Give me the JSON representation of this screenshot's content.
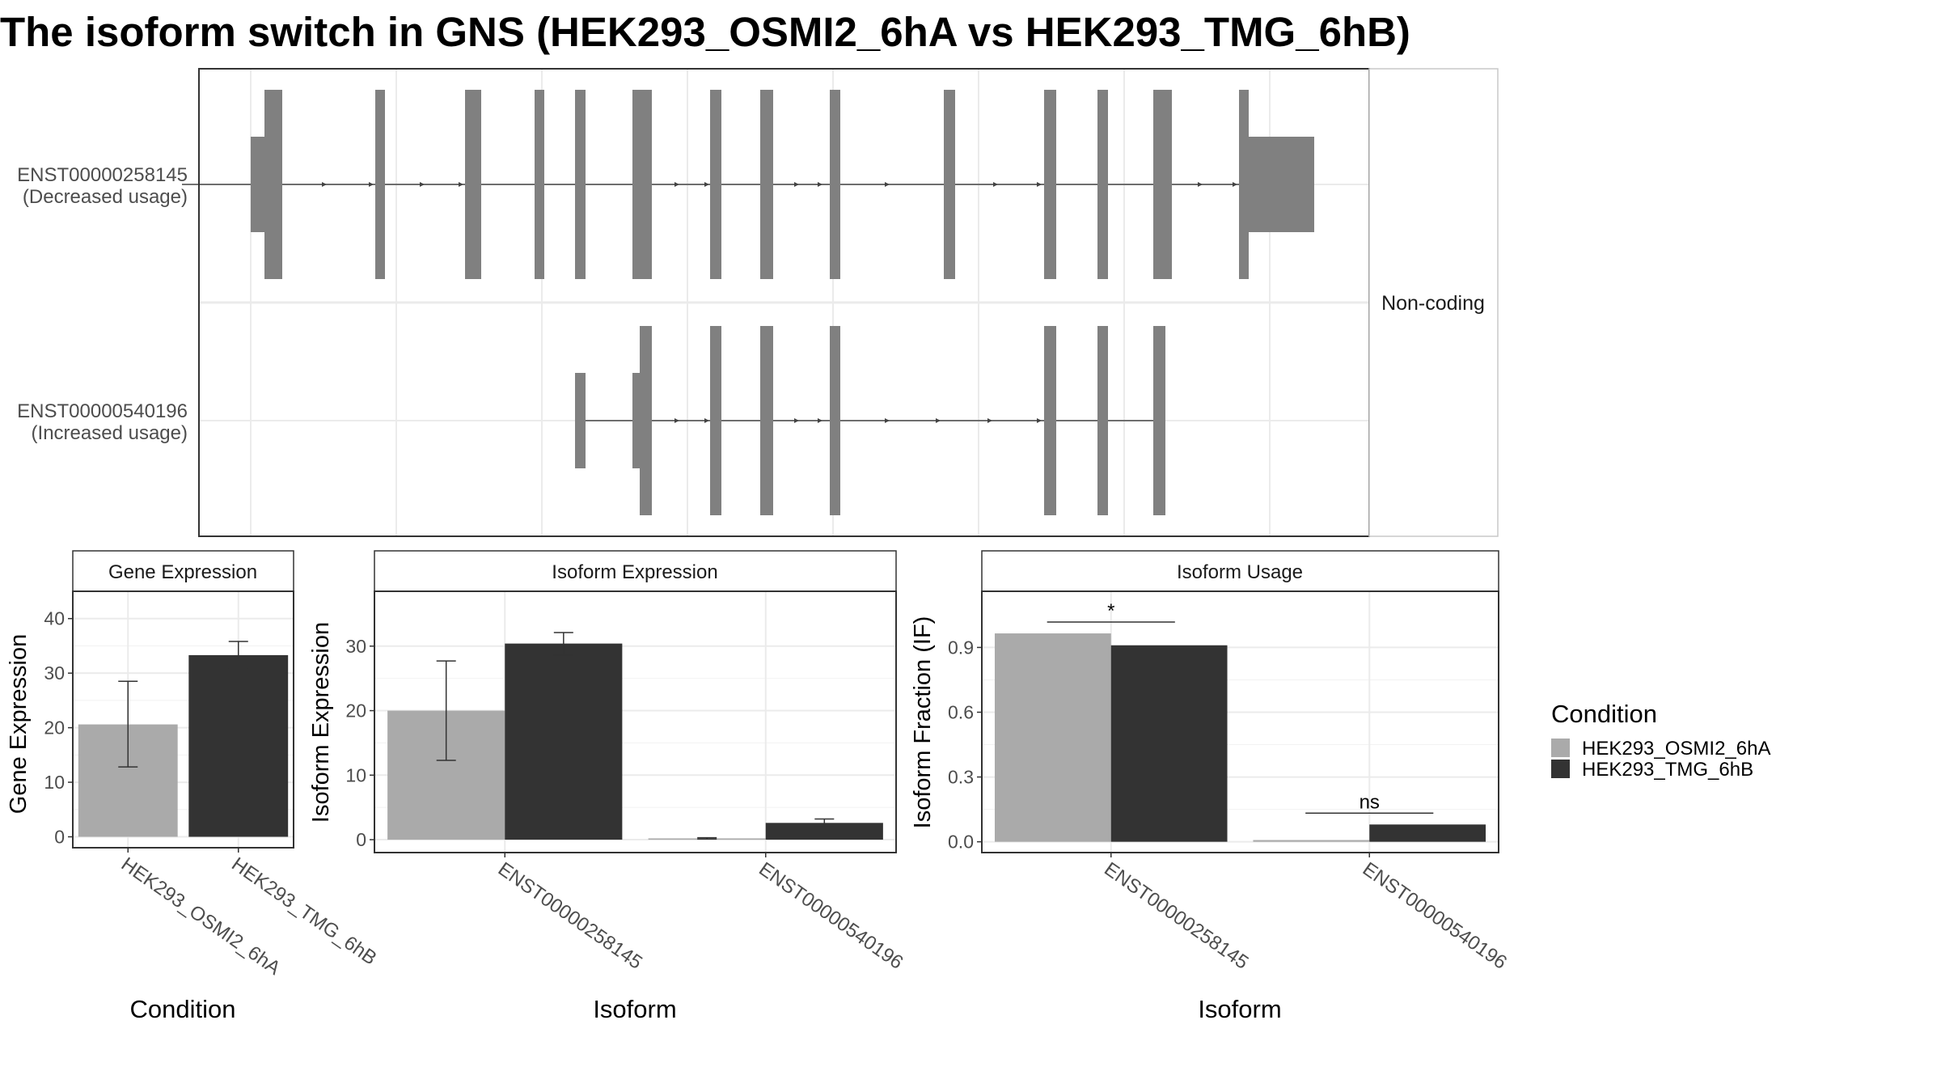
{
  "title": "The isoform switch in GNS (HEK293_OSMI2_6hA vs HEK293_TMG_6hB)",
  "colors": {
    "condA": "#aaaaaa",
    "condB": "#333333",
    "exon": "#808080",
    "grid": "#ebebeb",
    "panel_border": "#333333"
  },
  "structure": {
    "facet_label": "Non-coding",
    "transcripts": [
      {
        "id": "ENST00000258145",
        "usage": "(Decreased usage)"
      },
      {
        "id": "ENST00000540196",
        "usage": "(Increased usage)"
      }
    ]
  },
  "chart_data": [
    {
      "type": "bar",
      "strip": "Gene Expression",
      "categories": [
        "HEK293_OSMI2_6hA",
        "HEK293_TMG_6hB"
      ],
      "values": [
        20.6,
        33.3
      ],
      "errors": [
        [
          12.8,
          28.5
        ],
        [
          30.8,
          35.8
        ]
      ],
      "xlabel": "Condition",
      "ylabel": "Gene Expression",
      "ylim": [
        -2,
        45
      ],
      "yticks": [
        0,
        10,
        20,
        30,
        40
      ]
    },
    {
      "type": "bar",
      "strip": "Isoform Expression",
      "categories": [
        "ENST00000258145",
        "ENST00000540196"
      ],
      "series": [
        {
          "name": "HEK293_OSMI2_6hA",
          "values": [
            20.0,
            0.2
          ],
          "errors": [
            [
              12.3,
              27.7
            ],
            [
              0.1,
              0.3
            ]
          ]
        },
        {
          "name": "HEK293_TMG_6hB",
          "values": [
            30.4,
            2.6
          ],
          "errors": [
            [
              28.6,
              32.1
            ],
            [
              2.0,
              3.2
            ]
          ]
        }
      ],
      "xlabel": "Isoform",
      "ylabel": "Isoform Expression",
      "ylim": [
        -2,
        38.5
      ],
      "yticks": [
        0,
        10,
        20,
        30
      ]
    },
    {
      "type": "bar",
      "strip": "Isoform Usage",
      "categories": [
        "ENST00000258145",
        "ENST00000540196"
      ],
      "series": [
        {
          "name": "HEK293_OSMI2_6hA",
          "values": [
            0.965,
            0.008
          ]
        },
        {
          "name": "HEK293_TMG_6hB",
          "values": [
            0.91,
            0.08
          ]
        }
      ],
      "significance": [
        "*",
        "ns"
      ],
      "xlabel": "Isoform",
      "ylabel": "Isoform Fraction (IF)",
      "ylim": [
        -0.05,
        1.16
      ],
      "yticks": [
        0.0,
        0.3,
        0.6,
        0.9
      ]
    }
  ],
  "legend": {
    "title": "Condition",
    "entries": [
      "HEK293_OSMI2_6hA",
      "HEK293_TMG_6hB"
    ]
  }
}
